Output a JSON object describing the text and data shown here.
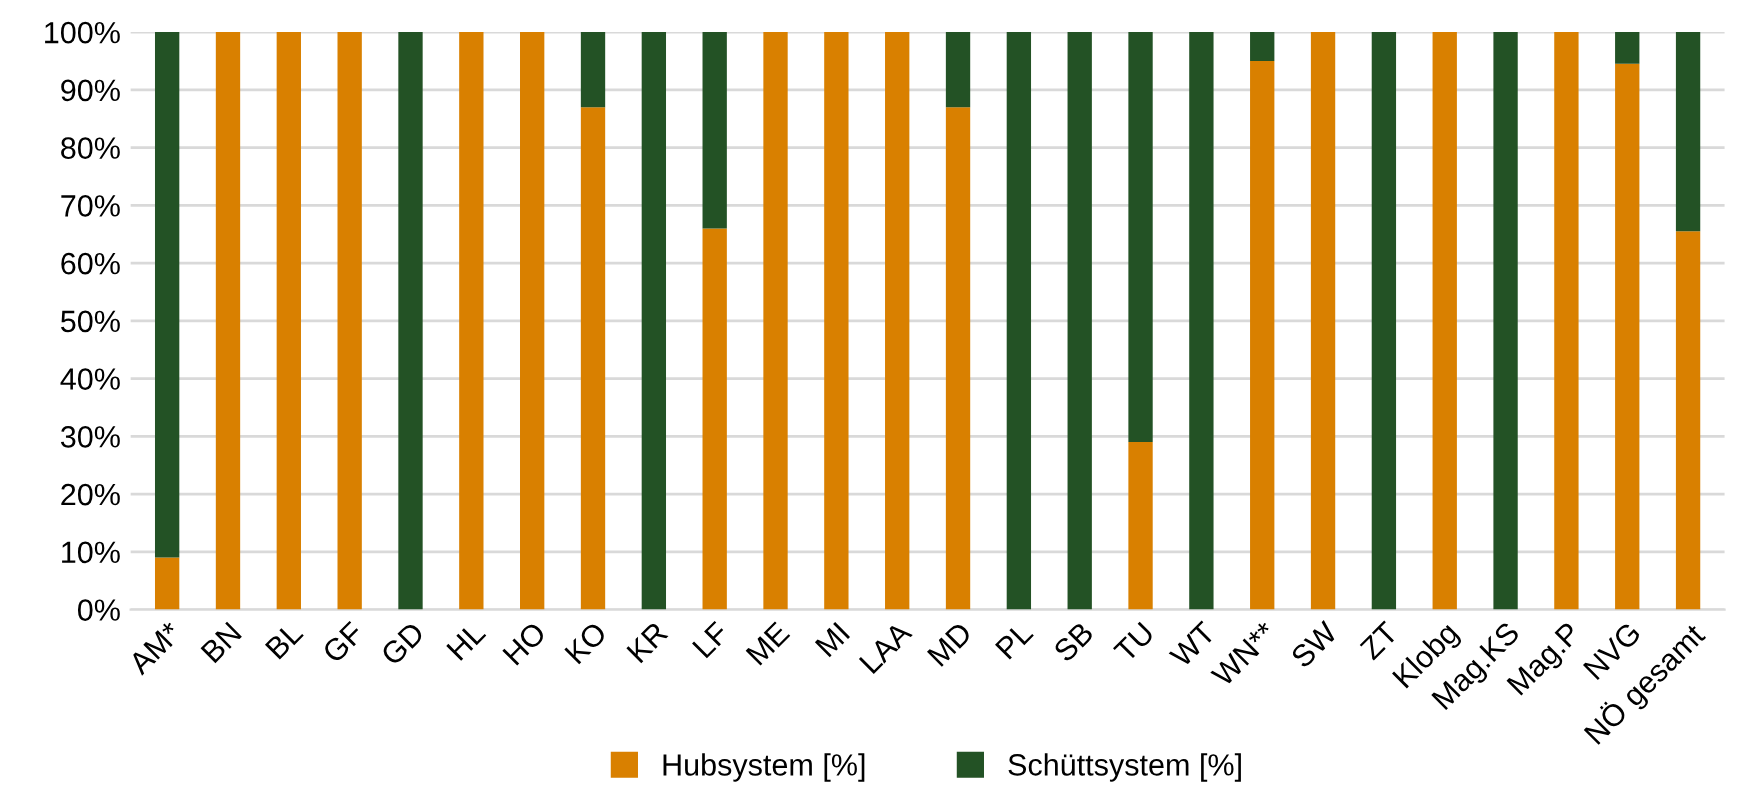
{
  "chart_data": {
    "type": "bar",
    "stacked": true,
    "categories": [
      "AM*",
      "BN",
      "BL",
      "GF",
      "GD",
      "HL",
      "HO",
      "KO",
      "KR",
      "LF",
      "ME",
      "MI",
      "LAA",
      "MD",
      "PL",
      "SB",
      "TU",
      "WT",
      "WN**",
      "SW",
      "ZT",
      "Klobg",
      "Mag.KS",
      "Mag.P",
      "NVG",
      "NÖ gesamt"
    ],
    "series": [
      {
        "name": "Hubsystem [%]",
        "color": "#d98000",
        "values": [
          9,
          100,
          100,
          100,
          0,
          100,
          100,
          87,
          0,
          66,
          100,
          100,
          100,
          87,
          0,
          0,
          29,
          0,
          95,
          100,
          0,
          100,
          0,
          100,
          94.5,
          65.5
        ]
      },
      {
        "name": "Schüttsystem [%]",
        "color": "#235225",
        "values": [
          91,
          0,
          0,
          0,
          100,
          0,
          0,
          13,
          100,
          34,
          0,
          0,
          0,
          13,
          100,
          100,
          71,
          100,
          5,
          0,
          100,
          0,
          100,
          0,
          5.5,
          34.5
        ]
      }
    ],
    "ylim": [
      0,
      100
    ],
    "yticks": [
      {
        "value": 0,
        "label": "0%"
      },
      {
        "value": 10,
        "label": "10%"
      },
      {
        "value": 20,
        "label": "20%"
      },
      {
        "value": 30,
        "label": "30%"
      },
      {
        "value": 40,
        "label": "40%"
      },
      {
        "value": 50,
        "label": "50%"
      },
      {
        "value": 60,
        "label": "60%"
      },
      {
        "value": 70,
        "label": "70%"
      },
      {
        "value": 80,
        "label": "80%"
      },
      {
        "value": 90,
        "label": "90%"
      },
      {
        "value": 100,
        "label": "100%"
      }
    ],
    "grid": "y",
    "legend": "bottom"
  }
}
